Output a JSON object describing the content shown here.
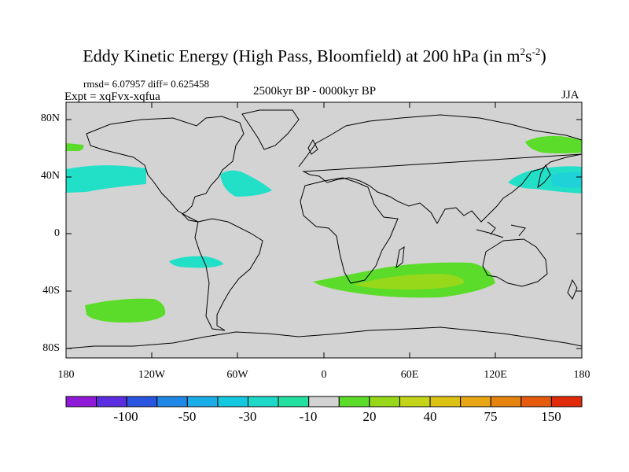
{
  "title": {
    "main": "Eddy Kinetic Energy (High Pass, Bloomfield) at 200 hPa (in m",
    "sup1": "2",
    "mid": "s",
    "sup2": "-2",
    "end": ")"
  },
  "stats": {
    "rmsd": "rmsd= 6.07957 diff= 0.625458"
  },
  "experiment": "Expt = xqFvx-xqfua",
  "period": "2500kyr BP - 0000kyr BP",
  "season": "JJA",
  "axes": {
    "y_ticks": [
      "80N",
      "40N",
      "0",
      "40S",
      "80S"
    ],
    "x_ticks": [
      "180",
      "120W",
      "60W",
      "0",
      "60E",
      "120E",
      "180"
    ]
  },
  "colorbar": {
    "colors": [
      "#8e1ad8",
      "#5a2ee0",
      "#2a55e0",
      "#1f87e6",
      "#1aaee8",
      "#14c8e0",
      "#1ed8c8",
      "#22e0a0",
      "#d3d3d3",
      "#5cdc2a",
      "#98d81a",
      "#c4d418",
      "#dcc212",
      "#e8a614",
      "#e6820e",
      "#e65a0e",
      "#e02a0a"
    ],
    "labels": [
      "-100",
      "-50",
      "-30",
      "-10",
      "20",
      "40",
      "75",
      "150"
    ]
  },
  "colors": {
    "land_ocean": "#d3d3d3",
    "green": "#5cdc2a",
    "yellow_green": "#98d81a",
    "cyan": "#22e0c8",
    "light_blue": "#1ed2d8"
  }
}
